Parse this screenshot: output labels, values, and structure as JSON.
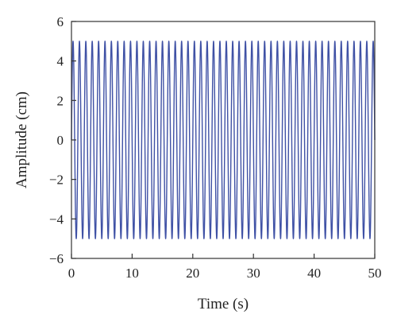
{
  "chart_data": {
    "type": "line",
    "title": "",
    "xlabel": "Time (s)",
    "ylabel": "Amplitude (cm)",
    "xlim": [
      0,
      50
    ],
    "ylim": [
      -6,
      6
    ],
    "xticks": [
      0,
      10,
      20,
      30,
      40,
      50
    ],
    "yticks": [
      -6,
      -4,
      -2,
      0,
      2,
      4,
      6
    ],
    "ytick_labels": [
      "−6",
      "−4",
      "−2",
      "0",
      "2",
      "4",
      "6"
    ],
    "grid": false,
    "legend": "none",
    "series": [
      {
        "color": "#3f51a5",
        "function": "sine",
        "amplitude": 5,
        "frequency_hz": 0.95,
        "phase_rad": 0,
        "x_start": 0,
        "x_end": 50
      }
    ]
  }
}
